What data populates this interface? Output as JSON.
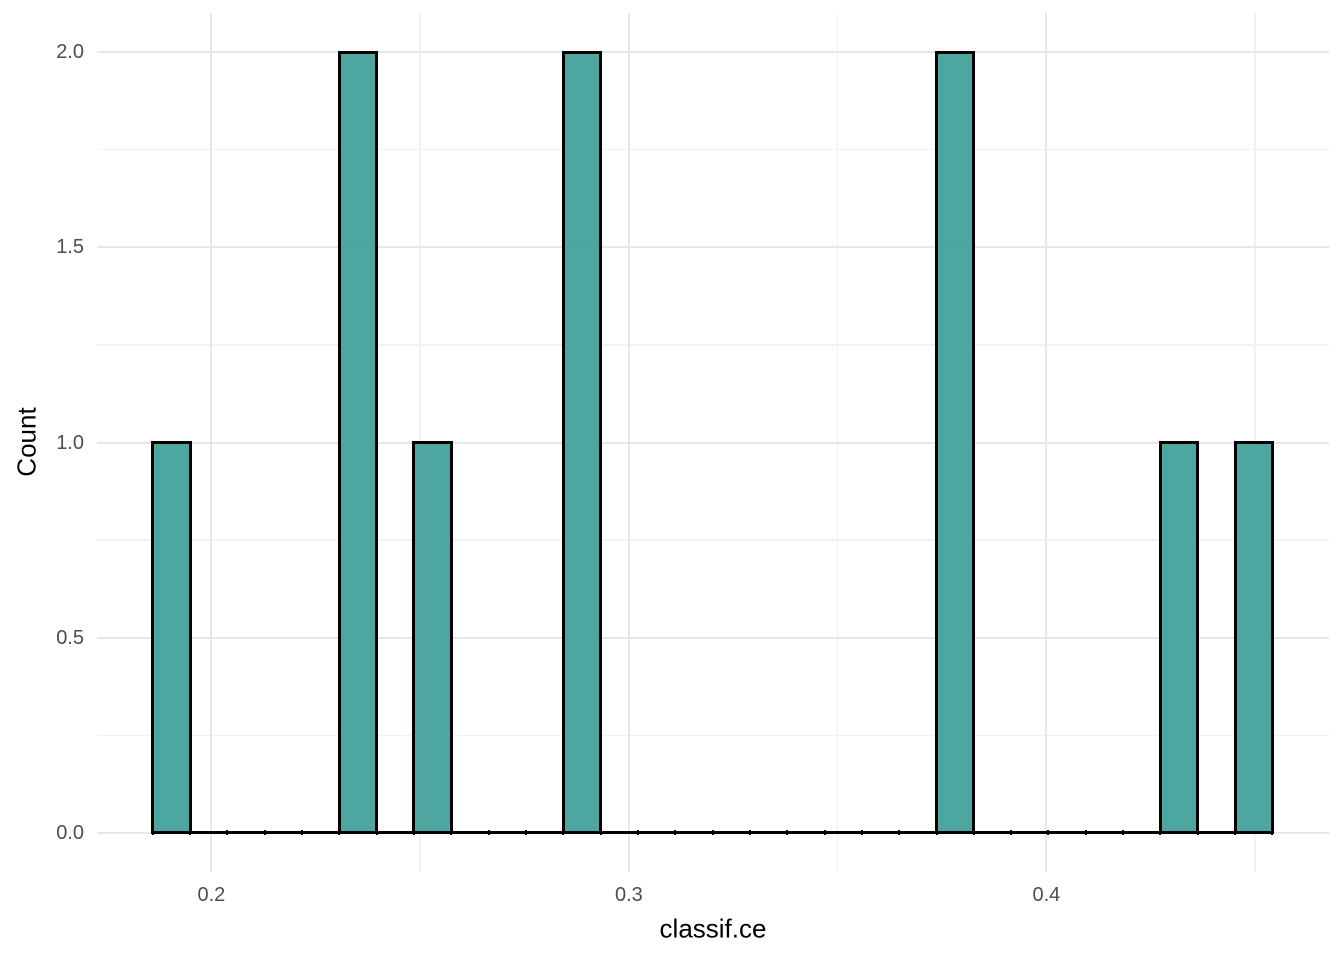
{
  "figure": {
    "background": "#FFFFFF"
  },
  "chart_data": {
    "type": "bar",
    "subtype": "histogram",
    "title": "",
    "xlabel": "classif.ce",
    "ylabel": "Count",
    "xlim": [
      0.1726,
      0.4677
    ],
    "ylim": [
      -0.1,
      2.1
    ],
    "grid": {
      "major": true,
      "minor": true
    },
    "legend": false,
    "x_axis": {
      "major_ticks": [
        0.2,
        0.3,
        0.4
      ],
      "major_labels": [
        "0.2",
        "0.3",
        "0.4"
      ],
      "minor_ticks": [
        0.25,
        0.35,
        0.45
      ]
    },
    "y_axis": {
      "major_ticks": [
        0,
        0.5,
        1,
        1.5,
        2
      ],
      "major_labels": [
        "0.0",
        "0.5",
        "1.0",
        "1.5",
        "2.0"
      ],
      "minor_ticks": [
        0.25,
        0.75,
        1.25,
        1.75
      ]
    },
    "bins": {
      "start": 0.18595,
      "width": 0.00894,
      "counts": [
        1,
        0,
        0,
        0,
        0,
        2,
        0,
        1,
        0,
        0,
        0,
        2,
        0,
        0,
        0,
        0,
        0,
        0,
        0,
        0,
        0,
        2,
        0,
        0,
        0,
        0,
        0,
        1,
        0,
        1
      ]
    },
    "bars": [
      {
        "x_center": 0.1904,
        "count": 1
      },
      {
        "x_center": 0.2352,
        "count": 2
      },
      {
        "x_center": 0.253,
        "count": 1
      },
      {
        "x_center": 0.2888,
        "count": 2
      },
      {
        "x_center": 0.3782,
        "count": 2
      },
      {
        "x_center": 0.4318,
        "count": 1
      },
      {
        "x_center": 0.4497,
        "count": 1
      }
    ],
    "colors": {
      "bar_fill": "#43A09B",
      "bar_fill_alpha": 0.94,
      "bar_stroke": "#000000",
      "grid_major": "#E7E7E7",
      "grid_minor": "#F2F2F2",
      "tick_text": "#4D4D4D",
      "title_text": "#000000",
      "background": "#FFFFFF"
    }
  }
}
